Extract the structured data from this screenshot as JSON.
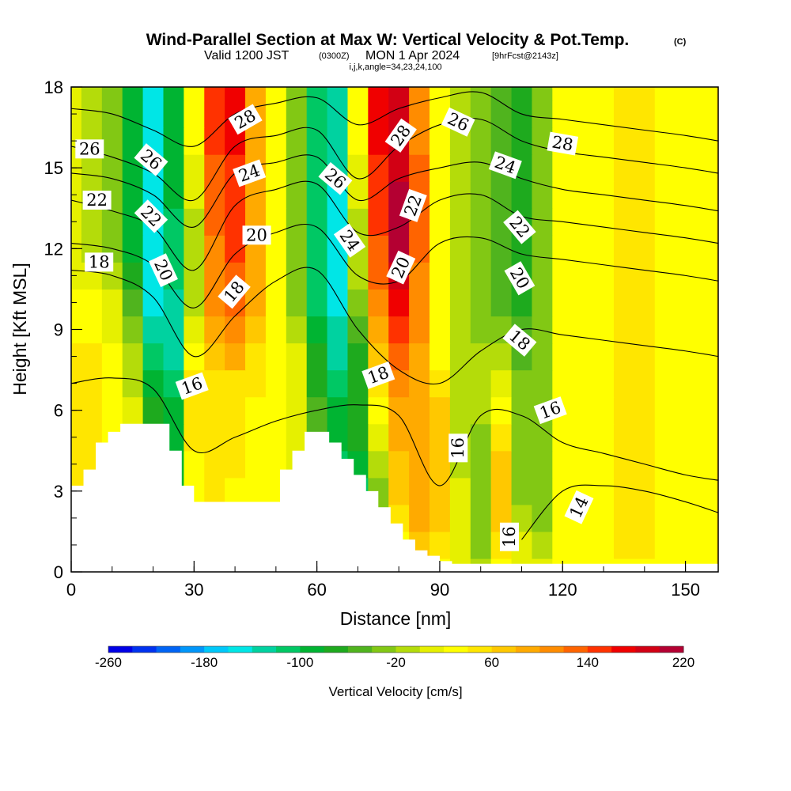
{
  "title": {
    "main": "Wind-Parallel Section at Max W: Vertical Velocity & Pot.Temp.",
    "copyright": "(C)",
    "valid_prefix": "Valid 1200 JST",
    "valid_zulu": "(0300Z)",
    "valid_date": "MON 1 Apr 2024",
    "forecast": "[9hrFcst@2143z]",
    "indices": "i,j,k,angle=34,23,24,100"
  },
  "chart_data": {
    "type": "heatmap",
    "xlabel": "Distance [nm]",
    "ylabel": "Height [Kft MSL]",
    "xlim": [
      0,
      158
    ],
    "ylim": [
      0,
      18
    ],
    "x_ticks": [
      0,
      30,
      60,
      90,
      120,
      150
    ],
    "y_ticks": [
      0,
      3,
      6,
      9,
      12,
      15,
      18
    ],
    "x_minor_step": 10,
    "y_minor_step": 1,
    "colorbar": {
      "title": "Vertical Velocity [cm/s]",
      "min": -260,
      "max": 220,
      "step": 20,
      "tick_labels": [
        -260,
        -180,
        -100,
        -20,
        60,
        140,
        220
      ],
      "colors": [
        "#0000e6",
        "#0032f0",
        "#0064f5",
        "#0096fa",
        "#00c8fa",
        "#00e6e6",
        "#00d2a0",
        "#00c864",
        "#00b432",
        "#1eaa1e",
        "#50b41e",
        "#82c814",
        "#b4dc0a",
        "#e6f000",
        "#ffff00",
        "#ffe600",
        "#ffc800",
        "#ffaa00",
        "#ff8c00",
        "#ff6400",
        "#ff3200",
        "#f00000",
        "#d20014",
        "#b40032",
        "#8c0064",
        "#6e0082",
        "#500096"
      ]
    },
    "vertical_velocity_cells": {
      "x": [
        0,
        5,
        10,
        15,
        20,
        25,
        30,
        35,
        40,
        45,
        50,
        55,
        60,
        65,
        70,
        75,
        80,
        85,
        90,
        95,
        100,
        105,
        110,
        115,
        120,
        125,
        130,
        135,
        140,
        145,
        150,
        155
      ],
      "y": [
        0,
        1,
        2,
        3,
        4,
        5,
        6,
        7,
        8,
        9,
        10,
        11,
        12,
        13,
        14,
        15,
        16,
        17,
        18
      ],
      "w": [
        [
          10,
          10,
          10,
          10,
          10,
          10,
          10,
          10,
          10,
          10,
          10,
          10,
          10,
          10,
          10,
          -20,
          10,
          40,
          20,
          0,
          -20,
          20,
          10,
          10,
          20,
          20,
          20,
          30,
          30,
          30,
          20,
          20
        ],
        [
          30,
          30,
          30,
          20,
          0,
          -40,
          10,
          20,
          20,
          30,
          20,
          10,
          -20,
          -60,
          -80,
          -20,
          20,
          60,
          40,
          0,
          -40,
          40,
          0,
          -20,
          20,
          30,
          30,
          40,
          40,
          30,
          30,
          20
        ],
        [
          30,
          30,
          30,
          20,
          -40,
          -80,
          20,
          40,
          20,
          30,
          20,
          0,
          -40,
          -100,
          -120,
          -40,
          40,
          80,
          60,
          0,
          -40,
          60,
          -20,
          -40,
          20,
          30,
          30,
          40,
          40,
          30,
          30,
          20
        ],
        [
          40,
          40,
          30,
          10,
          -60,
          -100,
          20,
          40,
          30,
          30,
          20,
          0,
          -60,
          -120,
          -120,
          -40,
          60,
          80,
          60,
          0,
          -40,
          60,
          -40,
          -40,
          20,
          30,
          30,
          40,
          40,
          30,
          30,
          20
        ],
        [
          40,
          40,
          30,
          0,
          -80,
          -100,
          30,
          40,
          40,
          30,
          20,
          0,
          -60,
          -120,
          -100,
          -20,
          60,
          80,
          60,
          -20,
          -40,
          60,
          -40,
          -40,
          20,
          30,
          30,
          40,
          40,
          30,
          30,
          20
        ],
        [
          40,
          40,
          30,
          0,
          -80,
          -100,
          40,
          40,
          40,
          30,
          20,
          0,
          -60,
          -100,
          -80,
          0,
          80,
          80,
          60,
          -20,
          -40,
          40,
          -40,
          -40,
          20,
          30,
          30,
          40,
          40,
          30,
          30,
          20
        ],
        [
          40,
          40,
          30,
          0,
          -80,
          -100,
          40,
          40,
          40,
          30,
          20,
          0,
          -60,
          -100,
          -80,
          20,
          80,
          80,
          60,
          -20,
          -20,
          20,
          -40,
          -40,
          20,
          30,
          30,
          40,
          40,
          30,
          30,
          20
        ],
        [
          40,
          40,
          30,
          -10,
          -100,
          -120,
          40,
          40,
          50,
          40,
          20,
          0,
          -80,
          -120,
          -80,
          40,
          100,
          80,
          40,
          -20,
          -20,
          0,
          -40,
          -40,
          20,
          30,
          30,
          40,
          40,
          30,
          30,
          20
        ],
        [
          40,
          40,
          30,
          -20,
          -120,
          -140,
          20,
          60,
          80,
          50,
          20,
          0,
          -80,
          -140,
          -80,
          60,
          120,
          80,
          20,
          -20,
          -20,
          -20,
          -60,
          -40,
          20,
          30,
          30,
          40,
          40,
          30,
          30,
          20
        ],
        [
          30,
          30,
          10,
          -40,
          -140,
          -140,
          0,
          80,
          100,
          60,
          20,
          -20,
          -100,
          -140,
          -60,
          80,
          140,
          100,
          20,
          -20,
          -40,
          -40,
          -60,
          -40,
          20,
          30,
          30,
          40,
          40,
          30,
          30,
          20
        ],
        [
          20,
          20,
          0,
          -60,
          -160,
          -140,
          -20,
          100,
          120,
          80,
          20,
          -40,
          -120,
          -160,
          -40,
          100,
          160,
          100,
          20,
          -20,
          -40,
          -60,
          -80,
          -40,
          20,
          30,
          30,
          40,
          40,
          30,
          30,
          20
        ],
        [
          10,
          0,
          -20,
          -80,
          -160,
          -120,
          -20,
          100,
          120,
          80,
          20,
          -40,
          -120,
          -160,
          -20,
          120,
          180,
          100,
          20,
          -20,
          -40,
          -60,
          -80,
          -40,
          20,
          30,
          30,
          40,
          50,
          30,
          30,
          20
        ],
        [
          0,
          -20,
          -40,
          -100,
          -160,
          -120,
          -20,
          100,
          140,
          80,
          20,
          -40,
          -120,
          -160,
          -20,
          120,
          200,
          120,
          20,
          -20,
          -40,
          -60,
          -80,
          -40,
          20,
          30,
          30,
          40,
          50,
          30,
          30,
          20
        ],
        [
          0,
          -20,
          -40,
          -100,
          -160,
          -120,
          -20,
          120,
          140,
          80,
          20,
          -40,
          -120,
          -160,
          -20,
          140,
          200,
          120,
          20,
          -20,
          -40,
          -60,
          -80,
          -40,
          20,
          30,
          30,
          40,
          40,
          30,
          30,
          20
        ],
        [
          0,
          -20,
          -40,
          -100,
          -160,
          -100,
          0,
          120,
          140,
          80,
          20,
          -40,
          -120,
          -160,
          0,
          140,
          200,
          120,
          20,
          -20,
          -40,
          -60,
          -80,
          -40,
          20,
          30,
          30,
          40,
          40,
          30,
          30,
          20
        ],
        [
          0,
          -20,
          -40,
          -100,
          -160,
          -100,
          0,
          120,
          140,
          80,
          20,
          -40,
          -120,
          -140,
          0,
          140,
          180,
          120,
          20,
          -20,
          -40,
          -60,
          -80,
          -40,
          20,
          30,
          30,
          40,
          40,
          30,
          30,
          20
        ],
        [
          0,
          -20,
          -40,
          -100,
          -160,
          -100,
          20,
          140,
          160,
          80,
          20,
          -40,
          -120,
          -140,
          20,
          160,
          180,
          100,
          20,
          -20,
          -40,
          -60,
          -80,
          -40,
          20,
          30,
          30,
          40,
          40,
          30,
          30,
          20
        ],
        [
          0,
          -20,
          -40,
          -100,
          -160,
          -100,
          20,
          140,
          160,
          80,
          20,
          -40,
          -120,
          -140,
          20,
          160,
          180,
          100,
          20,
          -20,
          -40,
          -60,
          -80,
          -40,
          20,
          30,
          30,
          40,
          40,
          30,
          30,
          20
        ],
        [
          0,
          -20,
          -40,
          -100,
          -160,
          -100,
          20,
          140,
          160,
          80,
          20,
          -40,
          -120,
          -140,
          20,
          160,
          180,
          100,
          20,
          -20,
          -40,
          -60,
          -80,
          -40,
          20,
          30,
          30,
          40,
          40,
          30,
          30,
          20
        ]
      ]
    },
    "terrain": {
      "x": [
        0,
        3,
        6,
        9,
        12,
        15,
        18,
        21,
        24,
        27,
        30,
        33,
        36,
        39,
        42,
        45,
        48,
        51,
        54,
        57,
        60,
        63,
        66,
        69,
        72,
        75,
        78,
        81,
        84,
        87,
        90,
        93,
        96,
        99,
        102,
        105,
        108,
        111,
        114,
        117,
        120,
        123,
        126,
        129,
        132,
        135,
        138,
        141,
        144,
        147,
        150,
        153,
        156,
        158
      ],
      "height": [
        3.2,
        3.8,
        4.8,
        5.2,
        5.5,
        5.5,
        5.5,
        5.5,
        4.5,
        3.2,
        2.6,
        2.6,
        2.6,
        2.6,
        2.6,
        2.6,
        2.6,
        3.8,
        4.5,
        5.2,
        5.2,
        4.8,
        4.2,
        3.6,
        3.0,
        2.4,
        1.8,
        1.2,
        0.8,
        0.6,
        0.4,
        0.3,
        0.3,
        0.3,
        0.3,
        0.3,
        0.3,
        0.3,
        0.3,
        0.3,
        0.3,
        0.3,
        0.3,
        0.3,
        0.3,
        0.3,
        0.3,
        0.3,
        0.3,
        0.3,
        0.3,
        0.3,
        0.3,
        0.3
      ]
    },
    "potential_temperature": {
      "x": [
        0,
        10,
        20,
        30,
        40,
        50,
        60,
        70,
        80,
        90,
        100,
        110,
        120,
        130,
        140,
        150,
        158
      ],
      "levels": [
        {
          "theta": 14,
          "y": [
            null,
            null,
            null,
            null,
            null,
            null,
            null,
            null,
            null,
            null,
            null,
            1.2,
            3.0,
            3.2,
            3.0,
            2.6,
            2.2
          ]
        },
        {
          "theta": 16,
          "y": [
            7.0,
            7.2,
            6.8,
            4.5,
            5.0,
            5.6,
            6.0,
            6.2,
            5.8,
            3.2,
            5.8,
            5.8,
            4.8,
            4.4,
            4.0,
            3.6,
            3.4
          ]
        },
        {
          "theta": 18,
          "y": [
            11.2,
            11.0,
            10.2,
            8.0,
            9.5,
            10.8,
            11.2,
            9.0,
            7.5,
            7.0,
            8.2,
            9.0,
            8.8,
            8.6,
            8.4,
            8.2,
            8.0
          ]
        },
        {
          "theta": 20,
          "y": [
            12.2,
            12.0,
            11.4,
            9.8,
            11.8,
            12.6,
            12.8,
            11.0,
            10.8,
            12.2,
            12.4,
            11.8,
            11.6,
            11.4,
            11.2,
            11.0,
            10.8
          ]
        },
        {
          "theta": 22,
          "y": [
            13.8,
            13.4,
            12.8,
            11.2,
            13.6,
            14.2,
            14.4,
            12.6,
            12.8,
            13.8,
            14.0,
            13.2,
            13.0,
            12.8,
            12.6,
            12.4,
            12.2
          ]
        },
        {
          "theta": 24,
          "y": [
            14.8,
            14.6,
            14.0,
            12.8,
            14.8,
            15.2,
            15.4,
            13.8,
            14.6,
            15.0,
            15.2,
            14.6,
            14.2,
            14.0,
            13.8,
            13.6,
            13.4
          ]
        },
        {
          "theta": 26,
          "y": [
            15.8,
            15.4,
            14.8,
            13.8,
            15.8,
            16.2,
            16.4,
            14.6,
            15.8,
            16.6,
            16.8,
            16.0,
            15.6,
            15.4,
            15.2,
            15.0,
            14.8
          ]
        },
        {
          "theta": 28,
          "y": [
            17.2,
            17.0,
            16.4,
            15.8,
            17.0,
            17.4,
            17.6,
            16.6,
            17.2,
            17.6,
            17.8,
            17.0,
            16.8,
            16.6,
            16.4,
            16.2,
            16.0
          ]
        }
      ],
      "labels": [
        {
          "text": "26",
          "x": 4.5,
          "y": 15.7,
          "rot": 0
        },
        {
          "text": "22",
          "x": 6.3,
          "y": 13.8,
          "rot": 0
        },
        {
          "text": "18",
          "x": 6.8,
          "y": 11.5,
          "rot": 0
        },
        {
          "text": "26",
          "x": 19.5,
          "y": 15.3,
          "rot": 40
        },
        {
          "text": "22",
          "x": 19.5,
          "y": 13.2,
          "rot": 45
        },
        {
          "text": "20",
          "x": 22.5,
          "y": 11.2,
          "rot": 65
        },
        {
          "text": "16",
          "x": 29.5,
          "y": 6.9,
          "rot": -20
        },
        {
          "text": "18",
          "x": 39.8,
          "y": 10.4,
          "rot": -50
        },
        {
          "text": "20",
          "x": 45.3,
          "y": 12.5,
          "rot": 0
        },
        {
          "text": "24",
          "x": 43.5,
          "y": 14.8,
          "rot": -20
        },
        {
          "text": "28",
          "x": 42.5,
          "y": 16.8,
          "rot": -30
        },
        {
          "text": "26",
          "x": 64.5,
          "y": 14.6,
          "rot": 40
        },
        {
          "text": "24",
          "x": 68.0,
          "y": 12.3,
          "rot": 55
        },
        {
          "text": "18",
          "x": 75.0,
          "y": 7.3,
          "rot": -20
        },
        {
          "text": "20",
          "x": 80.5,
          "y": 11.3,
          "rot": -65
        },
        {
          "text": "22",
          "x": 83.5,
          "y": 13.6,
          "rot": -70
        },
        {
          "text": "28",
          "x": 80.5,
          "y": 16.2,
          "rot": -55
        },
        {
          "text": "26",
          "x": 94.5,
          "y": 16.7,
          "rot": 25
        },
        {
          "text": "24",
          "x": 106.0,
          "y": 15.1,
          "rot": 20
        },
        {
          "text": "22",
          "x": 109.5,
          "y": 12.8,
          "rot": 50
        },
        {
          "text": "20",
          "x": 109.5,
          "y": 10.9,
          "rot": 60
        },
        {
          "text": "18",
          "x": 109.5,
          "y": 8.6,
          "rot": 40
        },
        {
          "text": "16",
          "x": 117.0,
          "y": 6.0,
          "rot": -20
        },
        {
          "text": "28",
          "x": 120.0,
          "y": 15.9,
          "rot": 10
        },
        {
          "text": "16",
          "x": 94.5,
          "y": 4.6,
          "rot": -90
        },
        {
          "text": "16",
          "x": 107.0,
          "y": 1.3,
          "rot": -90
        },
        {
          "text": "14",
          "x": 124.0,
          "y": 2.4,
          "rot": -65
        }
      ]
    }
  }
}
